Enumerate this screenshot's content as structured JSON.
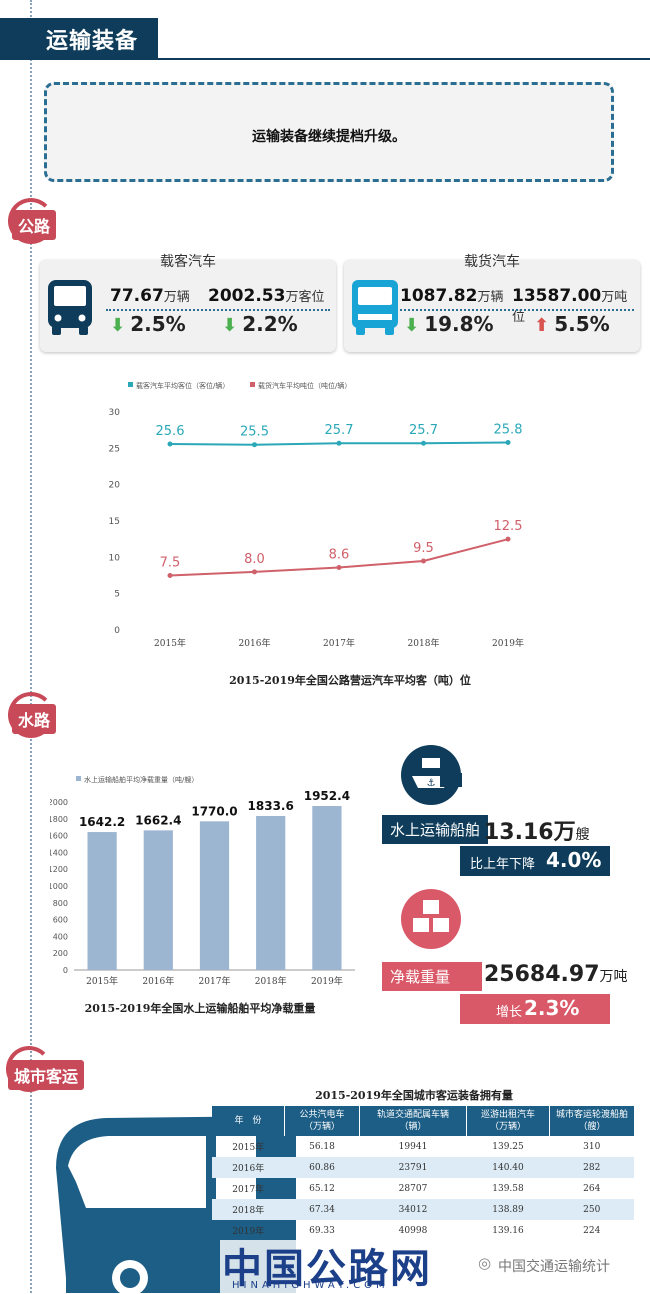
{
  "section_title": "运输装备",
  "intro": "运输装备继续提档升级。",
  "road": {
    "label": "公路",
    "passenger": {
      "title": "载客汽车",
      "count": "77.67",
      "count_unit": "万辆",
      "count_change": "2.5%",
      "seats": "2002.53",
      "seats_unit": "万客位",
      "seats_change": "2.2%"
    },
    "freight": {
      "title": "载货汽车",
      "count": "1087.82",
      "count_unit": "万辆",
      "count_change": "19.8%",
      "tons": "13587.00",
      "tons_unit": "万吨位",
      "tons_change": "5.5%"
    },
    "chart_caption": "2015-2019年全国公路营运汽车平均客（吨）位"
  },
  "water": {
    "label": "水路",
    "ships_label": "水上运输船舶",
    "ships_value": "13.16万",
    "ships_unit": "艘",
    "ships_change_prefix": "比上年下降",
    "ships_change": "4.0%",
    "tonnage_label": "净载重量",
    "tonnage_value": "25684.97",
    "tonnage_unit": "万吨",
    "tonnage_change_prefix": "增长",
    "tonnage_change": "2.3%",
    "chart_caption": "2015-2019年全国水上运输船舶平均净载重量"
  },
  "city": {
    "label": "城市客运",
    "table_title": "2015-2019年全国城市客运装备拥有量",
    "headers": [
      [
        "年　份",
        ""
      ],
      [
        "公共汽电车",
        "（万辆）"
      ],
      [
        "轨道交通配属车辆",
        "（辆）"
      ],
      [
        "巡游出租汽车",
        "（万辆）"
      ],
      [
        "城市客运轮渡船舶",
        "（艘）"
      ]
    ],
    "rows": [
      [
        "2015年",
        "56.18",
        "19941",
        "139.25",
        "310"
      ],
      [
        "2016年",
        "60.86",
        "23791",
        "140.40",
        "282"
      ],
      [
        "2017年",
        "65.12",
        "28707",
        "139.58",
        "264"
      ],
      [
        "2018年",
        "67.34",
        "34012",
        "138.89",
        "250"
      ],
      [
        "2019年",
        "69.33",
        "40998",
        "139.16",
        "224"
      ]
    ]
  },
  "watermark": {
    "main": "中国公路网",
    "sub": "HINAHIGHWAY.COM",
    "wechat": "中国交通运输统计"
  },
  "chart_data": [
    {
      "type": "line",
      "categories": [
        "2015年",
        "2016年",
        "2017年",
        "2018年",
        "2019年"
      ],
      "series": [
        {
          "name": "载客汽车平均客位（客位/辆）",
          "values": [
            25.6,
            25.5,
            25.7,
            25.7,
            25.8
          ],
          "color": "#2ba8b8"
        },
        {
          "name": "载货汽车平均吨位（吨位/辆）",
          "values": [
            7.5,
            8.0,
            8.6,
            9.5,
            12.5
          ],
          "color": "#d0606a"
        }
      ],
      "data_labels": [
        [
          "25.6",
          "25.5",
          "25.7",
          "25.7",
          "25.8"
        ],
        [
          "7.5",
          "8.0",
          "8.6",
          "9.5",
          "12.5"
        ]
      ],
      "ylim": [
        0,
        30
      ],
      "yticks": [
        "0",
        "5",
        "10",
        "15",
        "20",
        "25",
        "30"
      ],
      "legend": "top-left",
      "grid": false
    },
    {
      "type": "bar",
      "categories": [
        "2015年",
        "2016年",
        "2017年",
        "2018年",
        "2019年"
      ],
      "series": [
        {
          "name": "水上运输船舶平均净载重量（吨/艘）",
          "values": [
            1642.2,
            1662.4,
            1770.0,
            1833.6,
            1952.4
          ],
          "color": "#9cb6d2"
        }
      ],
      "data_labels": [
        "1642.2",
        "1662.4",
        "1770.0",
        "1833.6",
        "1952.4"
      ],
      "ylim": [
        0,
        2000
      ],
      "yticks": [
        "0",
        "200",
        "400",
        "600",
        "800",
        "1000",
        "1200",
        "1400",
        "1600",
        "1800",
        "2000"
      ],
      "legend": "top-left",
      "grid": false
    }
  ]
}
